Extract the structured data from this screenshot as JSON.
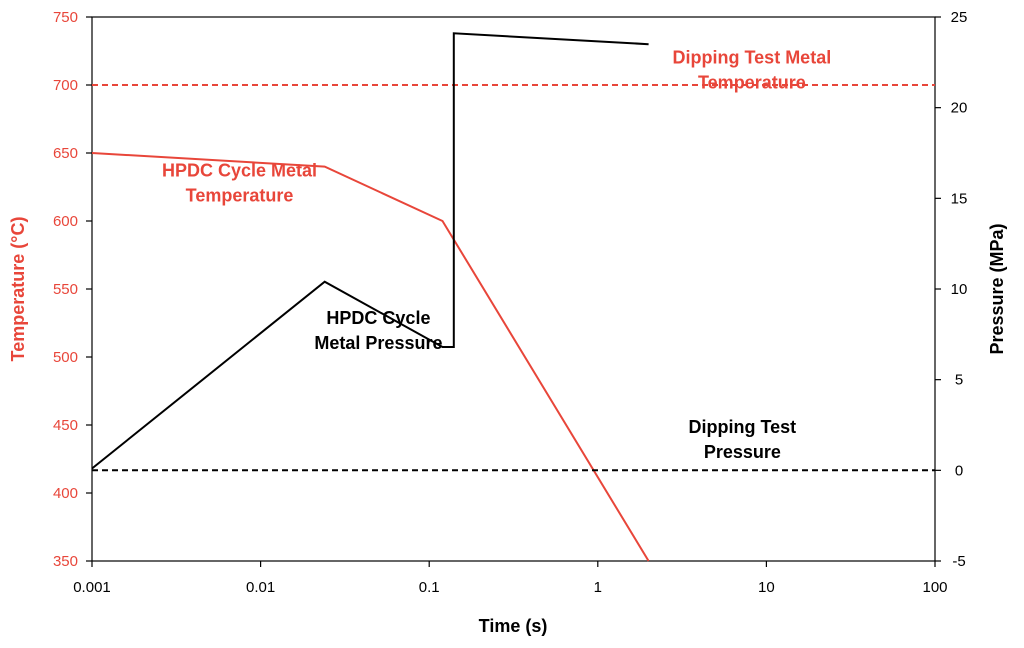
{
  "chart_data": {
    "type": "line",
    "title": "",
    "xlabel": "Time (s)",
    "ylabel_left": "Temperature (°C)",
    "ylabel_right": "Pressure (MPa)",
    "x_scale": "log",
    "xlim": [
      0.001,
      100
    ],
    "ylim_left": [
      350,
      750
    ],
    "ylim_right": [
      -5,
      25
    ],
    "grid": false,
    "legend": "none",
    "x_ticks": [
      "0.001",
      "0.01",
      "0.1",
      "1",
      "10",
      "100"
    ],
    "x_tick_values": [
      0.001,
      0.01,
      0.1,
      1,
      10,
      100
    ],
    "y_left_ticks": [
      350,
      400,
      450,
      500,
      550,
      600,
      650,
      700,
      750
    ],
    "y_right_ticks": [
      -5,
      0,
      5,
      10,
      15,
      20,
      25
    ],
    "colors": {
      "temperature": "#e8463a",
      "pressure": "#000000"
    },
    "series": [
      {
        "axis": "left",
        "style": "solid",
        "color": "#e8463a",
        "x": [
          0.001,
          0.024,
          0.12,
          2.0
        ],
        "y": [
          650,
          640,
          600,
          350
        ]
      },
      {
        "axis": "left",
        "style": "dashed",
        "color": "#e8463a",
        "x": [
          0.001,
          100
        ],
        "y": [
          700,
          700
        ]
      },
      {
        "axis": "right",
        "style": "solid",
        "color": "#000000",
        "x": [
          0.001,
          0.024,
          0.12,
          0.14,
          0.14,
          2.0
        ],
        "y": [
          0.1,
          10.4,
          6.8,
          6.8,
          24.1,
          23.5
        ]
      },
      {
        "axis": "right",
        "style": "dashed",
        "color": "#000000",
        "x": [
          0.001,
          100
        ],
        "y": [
          0,
          0
        ]
      }
    ],
    "annotations": [
      {
        "lines": [
          "Dipping Test Metal",
          "Temperature"
        ],
        "color": "#e8463a",
        "x": 8.2,
        "axis": "left",
        "y": 707
      },
      {
        "lines": [
          "HPDC Cycle Metal",
          "Temperature"
        ],
        "color": "#e8463a",
        "x": 0.0075,
        "axis": "left",
        "y": 624
      },
      {
        "lines": [
          "HPDC Cycle",
          "Metal Pressure"
        ],
        "color": "#000000",
        "x": 0.05,
        "axis": "right",
        "y": 7.4
      },
      {
        "lines": [
          "Dipping Test",
          "Pressure"
        ],
        "color": "#000000",
        "x": 7.2,
        "axis": "right",
        "y": 1.4
      }
    ]
  }
}
